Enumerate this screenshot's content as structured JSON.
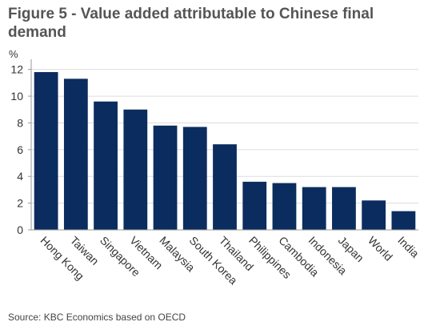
{
  "title": "Figure 5 - Value added attributable to Chinese final demand",
  "source": "Source: KBC Economics based on OECD",
  "chart_data": {
    "type": "bar",
    "ylabel": "%",
    "xlabel": "",
    "ylim": [
      0,
      12.4
    ],
    "yticks": [
      0,
      2,
      4,
      6,
      8,
      10,
      12
    ],
    "grid": true,
    "bar_color": "#0b2c5e",
    "categories": [
      "Hong Kong",
      "Taiwan",
      "Singapore",
      "Vietnam",
      "Malaysia",
      "South Korea",
      "Thailand",
      "Philippines",
      "Cambodia",
      "Indonesia",
      "Japan",
      "World",
      "India"
    ],
    "values": [
      11.8,
      11.3,
      9.6,
      9.0,
      7.8,
      7.7,
      6.4,
      3.6,
      3.5,
      3.2,
      3.2,
      2.2,
      1.4
    ]
  }
}
